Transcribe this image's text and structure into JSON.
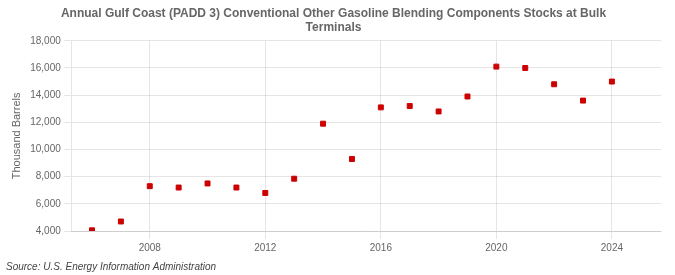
{
  "chart_data": {
    "type": "scatter",
    "title": "Annual Gulf Coast (PADD 3) Conventional Other Gasoline Blending Components Stocks at Bulk\nTerminals",
    "ylabel": "Thousand Barrels",
    "source": "Source: U.S. Energy Information Administration",
    "x": [
      2006,
      2007,
      2008,
      2009,
      2010,
      2011,
      2012,
      2013,
      2014,
      2015,
      2016,
      2017,
      2018,
      2019,
      2020,
      2021,
      2022,
      2023,
      2024
    ],
    "values": [
      4050,
      4700,
      7300,
      7200,
      7500,
      7200,
      6800,
      7850,
      11900,
      9300,
      13100,
      13200,
      12800,
      13900,
      16100,
      16000,
      14800,
      13600,
      15000
    ],
    "color": "#cc0000",
    "marker": "square",
    "xlim": [
      2005.3,
      2025.7
    ],
    "xticks": [
      2008,
      2012,
      2016,
      2020,
      2024
    ],
    "ylim": [
      4000,
      18000
    ],
    "yticks": [
      {
        "value": 4000,
        "label": "4,000"
      },
      {
        "value": 6000,
        "label": "6,000"
      },
      {
        "value": 8000,
        "label": "8,000"
      },
      {
        "value": 10000,
        "label": "10,000"
      },
      {
        "value": 12000,
        "label": "12,000"
      },
      {
        "value": 14000,
        "label": "14,000"
      },
      {
        "value": 16000,
        "label": "16,000"
      },
      {
        "value": 18000,
        "label": "18,000"
      }
    ],
    "grid": true
  }
}
